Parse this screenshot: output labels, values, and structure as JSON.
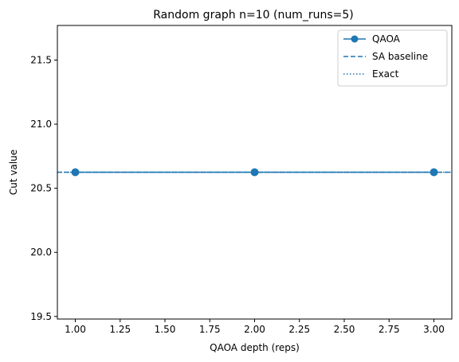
{
  "chart_data": {
    "type": "line",
    "title": "Random graph n=10 (num_runs=5)",
    "xlabel": "QAOA depth (reps)",
    "ylabel": "Cut value",
    "x": [
      1.0,
      2.0,
      3.0
    ],
    "xlim": [
      0.9,
      3.1
    ],
    "ylim": [
      19.48,
      21.77
    ],
    "xticks": [
      1.0,
      1.25,
      1.5,
      1.75,
      2.0,
      2.25,
      2.5,
      2.75,
      3.0
    ],
    "xtick_labels": [
      "1.00",
      "1.25",
      "1.50",
      "1.75",
      "2.00",
      "2.25",
      "2.50",
      "2.75",
      "3.00"
    ],
    "yticks": [
      19.5,
      20.0,
      20.5,
      21.0,
      21.5
    ],
    "ytick_labels": [
      "19.5",
      "20.0",
      "20.5",
      "21.0",
      "21.5"
    ],
    "series": [
      {
        "name": "QAOA",
        "style": "solid",
        "marker": "circle",
        "color": "#1f77b4",
        "values": [
          20.625,
          20.625,
          20.625
        ]
      }
    ],
    "hlines": [
      {
        "name": "SA baseline",
        "style": "dashed",
        "color": "#1f77b4",
        "value": 20.625
      },
      {
        "name": "Exact",
        "style": "dotted",
        "color": "#1f77b4",
        "value": 20.625
      }
    ],
    "legend": {
      "position": "top-right",
      "entries": [
        "QAOA",
        "SA baseline",
        "Exact"
      ]
    },
    "grid": false
  }
}
